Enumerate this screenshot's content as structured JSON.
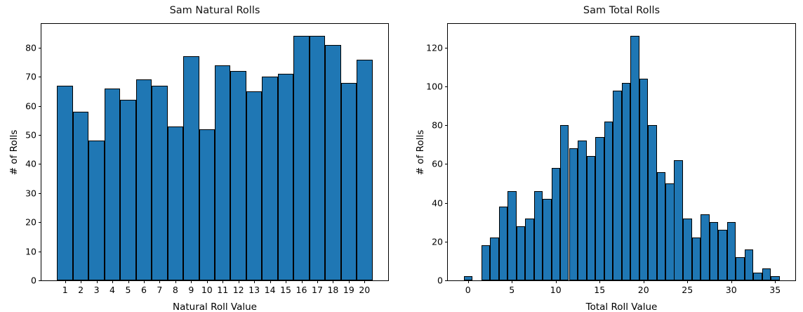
{
  "figure": {
    "background": "#ffffff",
    "bar_fill": "#1f77b4",
    "bar_edge": "#000000",
    "text_color": "#000000"
  },
  "chart_data": [
    {
      "type": "bar",
      "title": "Sam Natural Rolls",
      "xlabel": "Natural Roll Value",
      "ylabel": "# of Rolls",
      "categories": [
        1,
        2,
        3,
        4,
        5,
        6,
        7,
        8,
        9,
        10,
        11,
        12,
        13,
        14,
        15,
        16,
        17,
        18,
        19,
        20
      ],
      "values": [
        67,
        58,
        48,
        66,
        62,
        69,
        67,
        53,
        77,
        52,
        74,
        72,
        65,
        70,
        71,
        84,
        84,
        81,
        68,
        76
      ],
      "bin_width": 1,
      "xticks": [
        1,
        2,
        3,
        4,
        5,
        6,
        7,
        8,
        9,
        10,
        11,
        12,
        13,
        14,
        15,
        16,
        17,
        18,
        19,
        20
      ],
      "yticks": [
        0,
        10,
        20,
        30,
        40,
        50,
        60,
        70,
        80
      ],
      "xlim": [
        -0.5,
        21.5
      ],
      "ylim": [
        0,
        88.2
      ],
      "grid": false
    },
    {
      "type": "bar",
      "title": "Sam Total Rolls",
      "xlabel": "Total Roll Value",
      "ylabel": "# of Rolls",
      "categories": [
        0,
        1,
        2,
        3,
        4,
        5,
        6,
        7,
        8,
        9,
        10,
        11,
        12,
        13,
        14,
        15,
        16,
        17,
        18,
        19,
        20,
        21,
        22,
        23,
        24,
        25,
        26,
        27,
        28,
        29,
        30,
        31,
        32,
        33,
        34,
        35
      ],
      "values": [
        2,
        0,
        18,
        22,
        38,
        46,
        28,
        32,
        46,
        42,
        58,
        80,
        68,
        72,
        64,
        74,
        82,
        98,
        102,
        126,
        104,
        80,
        56,
        50,
        62,
        32,
        22,
        34,
        30,
        26,
        30,
        12,
        16,
        4,
        6,
        2
      ],
      "bin_width": 1,
      "xticks": [
        0,
        5,
        10,
        15,
        20,
        25,
        30,
        35
      ],
      "yticks": [
        0,
        20,
        40,
        60,
        80,
        100,
        120
      ],
      "xlim": [
        -2.3,
        37.3
      ],
      "ylim": [
        0,
        132.3
      ],
      "grid": false
    }
  ]
}
